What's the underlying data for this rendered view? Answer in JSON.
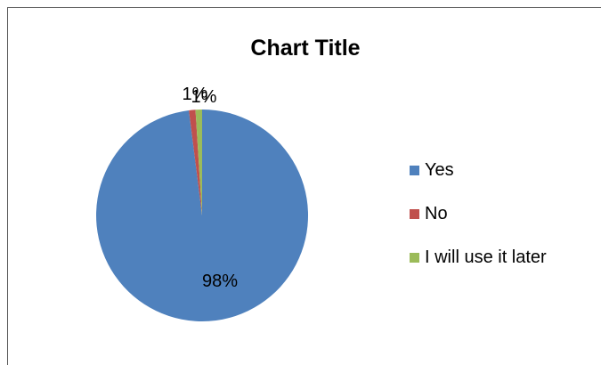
{
  "chart_data": {
    "type": "pie",
    "title": "Chart Title",
    "categories": [
      "Yes",
      "No",
      "I will use it later"
    ],
    "values": [
      98,
      1,
      1
    ],
    "data_labels": [
      "98%",
      "1%",
      "1%"
    ],
    "colors": [
      "#4F81BD",
      "#C0504D",
      "#9BBB59"
    ],
    "legend_position": "right",
    "start_angle": "12 o'clock, clockwise"
  }
}
